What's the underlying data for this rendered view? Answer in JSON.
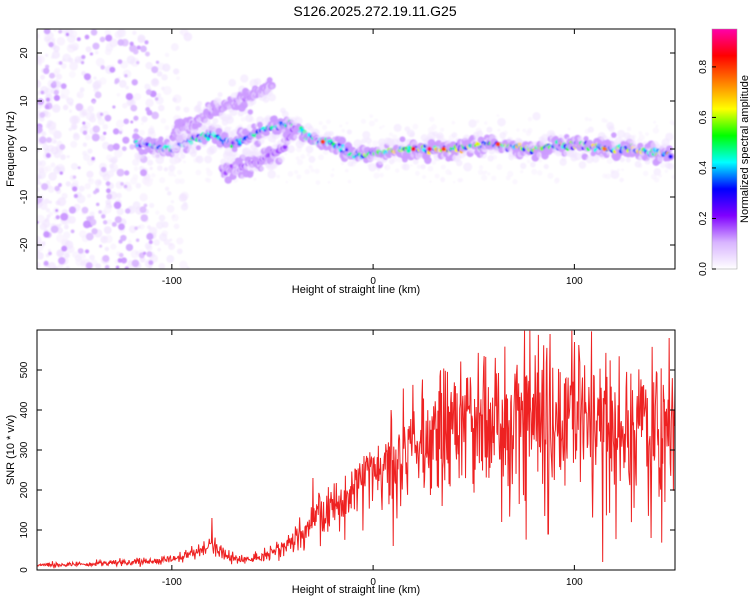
{
  "title": "S126.2025.272.19.11.G25",
  "chart_data": [
    {
      "type": "heatmap",
      "xlabel": "Height of straight line (km)",
      "ylabel": "Frequency (Hz)",
      "xlim": [
        -167,
        150
      ],
      "ylim": [
        -25,
        25
      ],
      "xticks": [
        -100,
        0,
        100
      ],
      "yticks": [
        -20,
        -10,
        0,
        10,
        20
      ],
      "colorbar": {
        "label": "Normalized spectral amplitude",
        "range": [
          0,
          0.95
        ],
        "ticks": [
          "0.0",
          "0.2",
          "0.4",
          "0.6",
          "0.8"
        ],
        "colors": [
          "#ffffff",
          "#d8b4ff",
          "#8000ff",
          "#0000ff",
          "#00ffff",
          "#00ff00",
          "#ffff00",
          "#ff7f00",
          "#ff0000",
          "#ff00aa"
        ]
      },
      "features": [
        {
          "name": "main line",
          "points": [
            [
              -118,
              1.5
            ],
            [
              -100,
              0
            ],
            [
              -90,
              2
            ],
            [
              -80,
              3
            ],
            [
              -70,
              1
            ],
            [
              -50,
              5
            ],
            [
              -40,
              5
            ],
            [
              -30,
              2
            ],
            [
              -20,
              1
            ],
            [
              -10,
              -1
            ],
            [
              0,
              -1
            ],
            [
              20,
              0
            ],
            [
              40,
              0
            ],
            [
              60,
              1
            ],
            [
              80,
              0
            ],
            [
              100,
              1
            ],
            [
              120,
              0
            ],
            [
              148,
              -1
            ]
          ],
          "amplitude": 0.5
        },
        {
          "name": "upper branch",
          "points": [
            [
              -100,
              3
            ],
            [
              -80,
              8
            ],
            [
              -60,
              11
            ],
            [
              -50,
              13
            ]
          ],
          "amplitude": 0.15
        },
        {
          "name": "lower branch",
          "points": [
            [
              -75,
              -5
            ],
            [
              -60,
              -3
            ],
            [
              -45,
              0
            ],
            [
              -38,
              5
            ]
          ],
          "amplitude": 0.2
        }
      ]
    },
    {
      "type": "line",
      "xlabel": "Height of straight line (km)",
      "ylabel": "SNR (10 * v/v)",
      "xlim": [
        -167,
        150
      ],
      "ylim": [
        0,
        600
      ],
      "xticks": [
        -100,
        0,
        100
      ],
      "yticks": [
        0,
        100,
        200,
        300,
        400,
        500
      ],
      "color": "#ee2222",
      "envelope": {
        "x": [
          -167,
          -140,
          -120,
          -100,
          -90,
          -80,
          -70,
          -60,
          -50,
          -40,
          -30,
          -20,
          -10,
          0,
          10,
          20,
          30,
          40,
          50,
          60,
          70,
          80,
          90,
          100,
          110,
          120,
          130,
          140,
          150
        ],
        "y": [
          12,
          15,
          20,
          25,
          40,
          60,
          30,
          25,
          40,
          70,
          120,
          160,
          200,
          250,
          280,
          320,
          340,
          350,
          360,
          370,
          380,
          390,
          380,
          380,
          370,
          360,
          350,
          340,
          330
        ]
      },
      "peaks": [
        [
          -80,
          130
        ],
        [
          -30,
          230
        ],
        [
          9,
          400
        ],
        [
          88,
          590
        ],
        [
          100,
          570
        ],
        [
          138,
          585
        ],
        [
          147,
          580
        ]
      ],
      "dips": [
        [
          10,
          60
        ],
        [
          64,
          120
        ],
        [
          87,
          90
        ],
        [
          114,
          20
        ],
        [
          138,
          80
        ]
      ]
    }
  ]
}
